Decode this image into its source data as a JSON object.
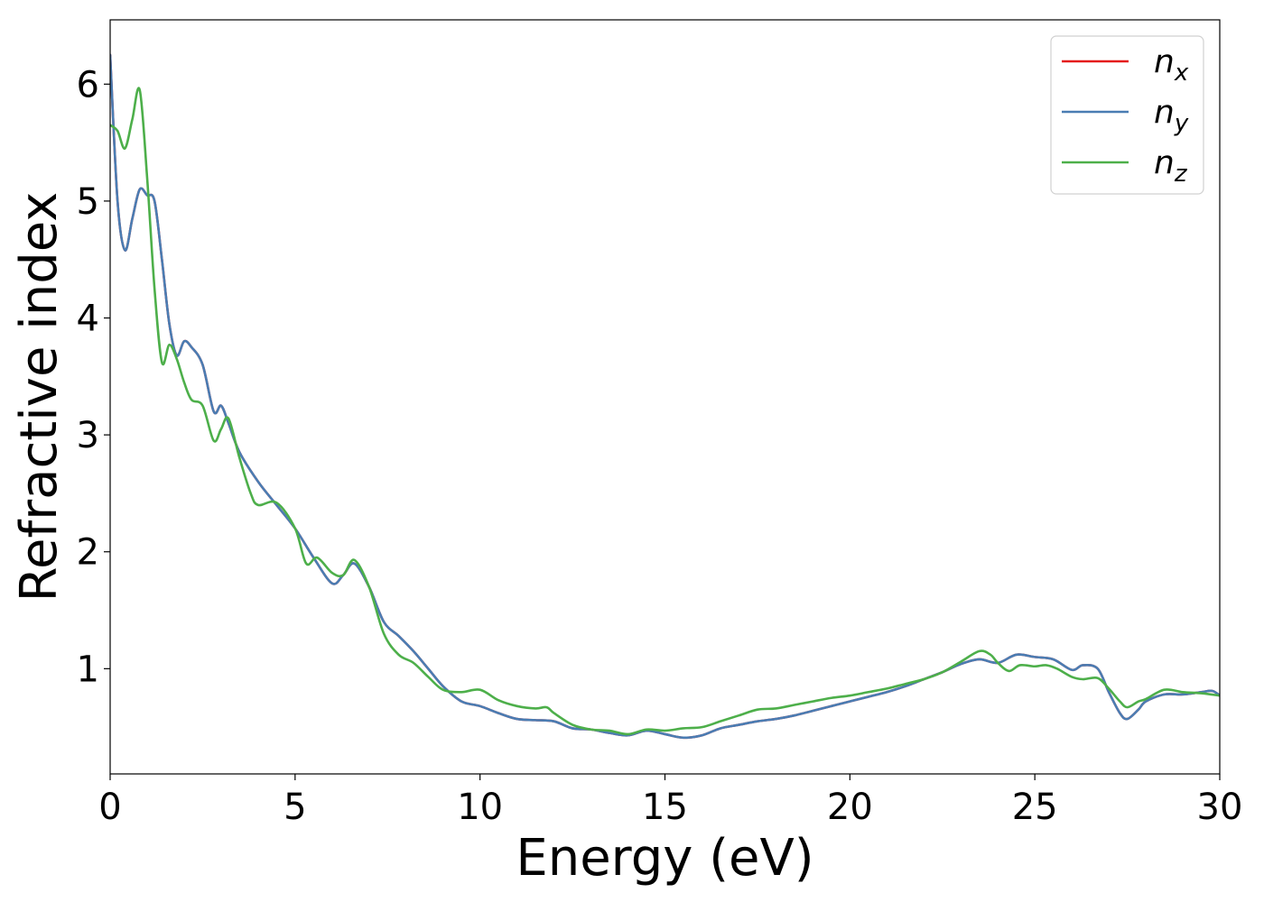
{
  "chart_data": {
    "type": "line",
    "title": "",
    "xlabel": "Energy (eV)",
    "ylabel": "Refractive index",
    "xlim": [
      0,
      30
    ],
    "ylim": [
      0.1,
      6.55
    ],
    "xticks": [
      0,
      5,
      10,
      15,
      20,
      25,
      30
    ],
    "yticks": [
      1,
      2,
      3,
      4,
      5,
      6
    ],
    "grid": false,
    "legend_position": "top-right",
    "series": [
      {
        "name": "n_x",
        "label_base": "n",
        "label_sub": "x",
        "color": "#e41a1c",
        "x": [
          0,
          0.2,
          0.4,
          0.6,
          0.8,
          1.0,
          1.2,
          1.4,
          1.6,
          1.8,
          2.0,
          2.2,
          2.5,
          2.8,
          3.0,
          3.2,
          3.5,
          4.0,
          4.5,
          5.0,
          5.5,
          6.0,
          6.3,
          6.6,
          7.0,
          7.4,
          7.8,
          8.2,
          8.6,
          9.0,
          9.5,
          10.0,
          10.5,
          11.0,
          11.5,
          12.0,
          12.5,
          13.0,
          13.5,
          14.0,
          14.5,
          15.0,
          15.5,
          16.0,
          16.5,
          17.0,
          17.5,
          18.0,
          18.5,
          19.0,
          19.5,
          20.0,
          20.5,
          21.0,
          21.5,
          22.0,
          22.5,
          23.0,
          23.5,
          24.0,
          24.5,
          25.0,
          25.5,
          26.0,
          26.3,
          26.7,
          27.0,
          27.3,
          27.5,
          27.8,
          28.0,
          28.5,
          29.0,
          29.5,
          29.8,
          30.0
        ],
        "y": [
          6.25,
          5.0,
          4.58,
          4.85,
          5.1,
          5.05,
          5.0,
          4.5,
          3.95,
          3.68,
          3.8,
          3.75,
          3.6,
          3.2,
          3.25,
          3.1,
          2.85,
          2.6,
          2.4,
          2.2,
          1.95,
          1.73,
          1.8,
          1.9,
          1.7,
          1.4,
          1.28,
          1.15,
          1.0,
          0.85,
          0.72,
          0.68,
          0.62,
          0.57,
          0.56,
          0.55,
          0.49,
          0.48,
          0.45,
          0.43,
          0.47,
          0.44,
          0.41,
          0.43,
          0.49,
          0.52,
          0.55,
          0.57,
          0.6,
          0.64,
          0.68,
          0.72,
          0.76,
          0.8,
          0.85,
          0.91,
          0.97,
          1.04,
          1.08,
          1.05,
          1.12,
          1.1,
          1.08,
          0.99,
          1.03,
          1.0,
          0.8,
          0.62,
          0.57,
          0.65,
          0.72,
          0.78,
          0.78,
          0.8,
          0.81,
          0.77
        ]
      },
      {
        "name": "n_y",
        "label_base": "n",
        "label_sub": "y",
        "color": "#4a7db3",
        "x": [
          0,
          0.2,
          0.4,
          0.6,
          0.8,
          1.0,
          1.2,
          1.4,
          1.6,
          1.8,
          2.0,
          2.2,
          2.5,
          2.8,
          3.0,
          3.2,
          3.5,
          4.0,
          4.5,
          5.0,
          5.5,
          6.0,
          6.3,
          6.6,
          7.0,
          7.4,
          7.8,
          8.2,
          8.6,
          9.0,
          9.5,
          10.0,
          10.5,
          11.0,
          11.5,
          12.0,
          12.5,
          13.0,
          13.5,
          14.0,
          14.5,
          15.0,
          15.5,
          16.0,
          16.5,
          17.0,
          17.5,
          18.0,
          18.5,
          19.0,
          19.5,
          20.0,
          20.5,
          21.0,
          21.5,
          22.0,
          22.5,
          23.0,
          23.5,
          24.0,
          24.5,
          25.0,
          25.5,
          26.0,
          26.3,
          26.7,
          27.0,
          27.3,
          27.5,
          27.8,
          28.0,
          28.5,
          29.0,
          29.5,
          29.8,
          30.0
        ],
        "y": [
          6.25,
          5.0,
          4.58,
          4.85,
          5.1,
          5.05,
          5.0,
          4.5,
          3.95,
          3.68,
          3.8,
          3.75,
          3.6,
          3.2,
          3.25,
          3.1,
          2.85,
          2.6,
          2.4,
          2.2,
          1.95,
          1.73,
          1.8,
          1.9,
          1.7,
          1.4,
          1.28,
          1.15,
          1.0,
          0.85,
          0.72,
          0.68,
          0.62,
          0.57,
          0.56,
          0.55,
          0.49,
          0.48,
          0.45,
          0.43,
          0.47,
          0.44,
          0.41,
          0.43,
          0.49,
          0.52,
          0.55,
          0.57,
          0.6,
          0.64,
          0.68,
          0.72,
          0.76,
          0.8,
          0.85,
          0.91,
          0.97,
          1.04,
          1.08,
          1.05,
          1.12,
          1.1,
          1.08,
          0.99,
          1.03,
          1.0,
          0.8,
          0.62,
          0.57,
          0.65,
          0.72,
          0.78,
          0.78,
          0.8,
          0.81,
          0.77
        ]
      },
      {
        "name": "n_z",
        "label_base": "n",
        "label_sub": "z",
        "color": "#4daf4a",
        "x": [
          0,
          0.2,
          0.4,
          0.6,
          0.8,
          1.0,
          1.2,
          1.4,
          1.6,
          1.8,
          2.0,
          2.2,
          2.5,
          2.8,
          3.0,
          3.2,
          3.5,
          3.8,
          4.0,
          4.5,
          5.0,
          5.3,
          5.6,
          6.0,
          6.3,
          6.6,
          7.0,
          7.4,
          7.8,
          8.2,
          8.6,
          9.0,
          9.5,
          10.0,
          10.5,
          11.0,
          11.5,
          11.8,
          12.0,
          12.5,
          13.0,
          13.5,
          14.0,
          14.5,
          15.0,
          15.5,
          16.0,
          16.5,
          17.0,
          17.5,
          18.0,
          18.5,
          19.0,
          19.5,
          20.0,
          20.5,
          21.0,
          21.5,
          22.0,
          22.5,
          23.0,
          23.5,
          23.8,
          24.0,
          24.3,
          24.6,
          25.0,
          25.3,
          25.6,
          26.0,
          26.3,
          26.7,
          27.0,
          27.3,
          27.5,
          27.8,
          28.0,
          28.5,
          29.0,
          29.5,
          30.0
        ],
        "y": [
          5.65,
          5.6,
          5.45,
          5.7,
          5.95,
          5.2,
          4.25,
          3.62,
          3.77,
          3.65,
          3.45,
          3.3,
          3.25,
          2.95,
          3.05,
          3.14,
          2.8,
          2.5,
          2.4,
          2.42,
          2.2,
          1.9,
          1.95,
          1.82,
          1.8,
          1.93,
          1.7,
          1.3,
          1.12,
          1.05,
          0.93,
          0.82,
          0.8,
          0.82,
          0.73,
          0.68,
          0.66,
          0.67,
          0.62,
          0.52,
          0.48,
          0.47,
          0.44,
          0.48,
          0.47,
          0.49,
          0.5,
          0.55,
          0.6,
          0.65,
          0.66,
          0.69,
          0.72,
          0.75,
          0.77,
          0.8,
          0.83,
          0.87,
          0.91,
          0.97,
          1.06,
          1.15,
          1.12,
          1.05,
          0.98,
          1.03,
          1.02,
          1.03,
          1.0,
          0.93,
          0.91,
          0.92,
          0.83,
          0.72,
          0.67,
          0.72,
          0.74,
          0.82,
          0.8,
          0.79,
          0.77
        ]
      }
    ]
  }
}
